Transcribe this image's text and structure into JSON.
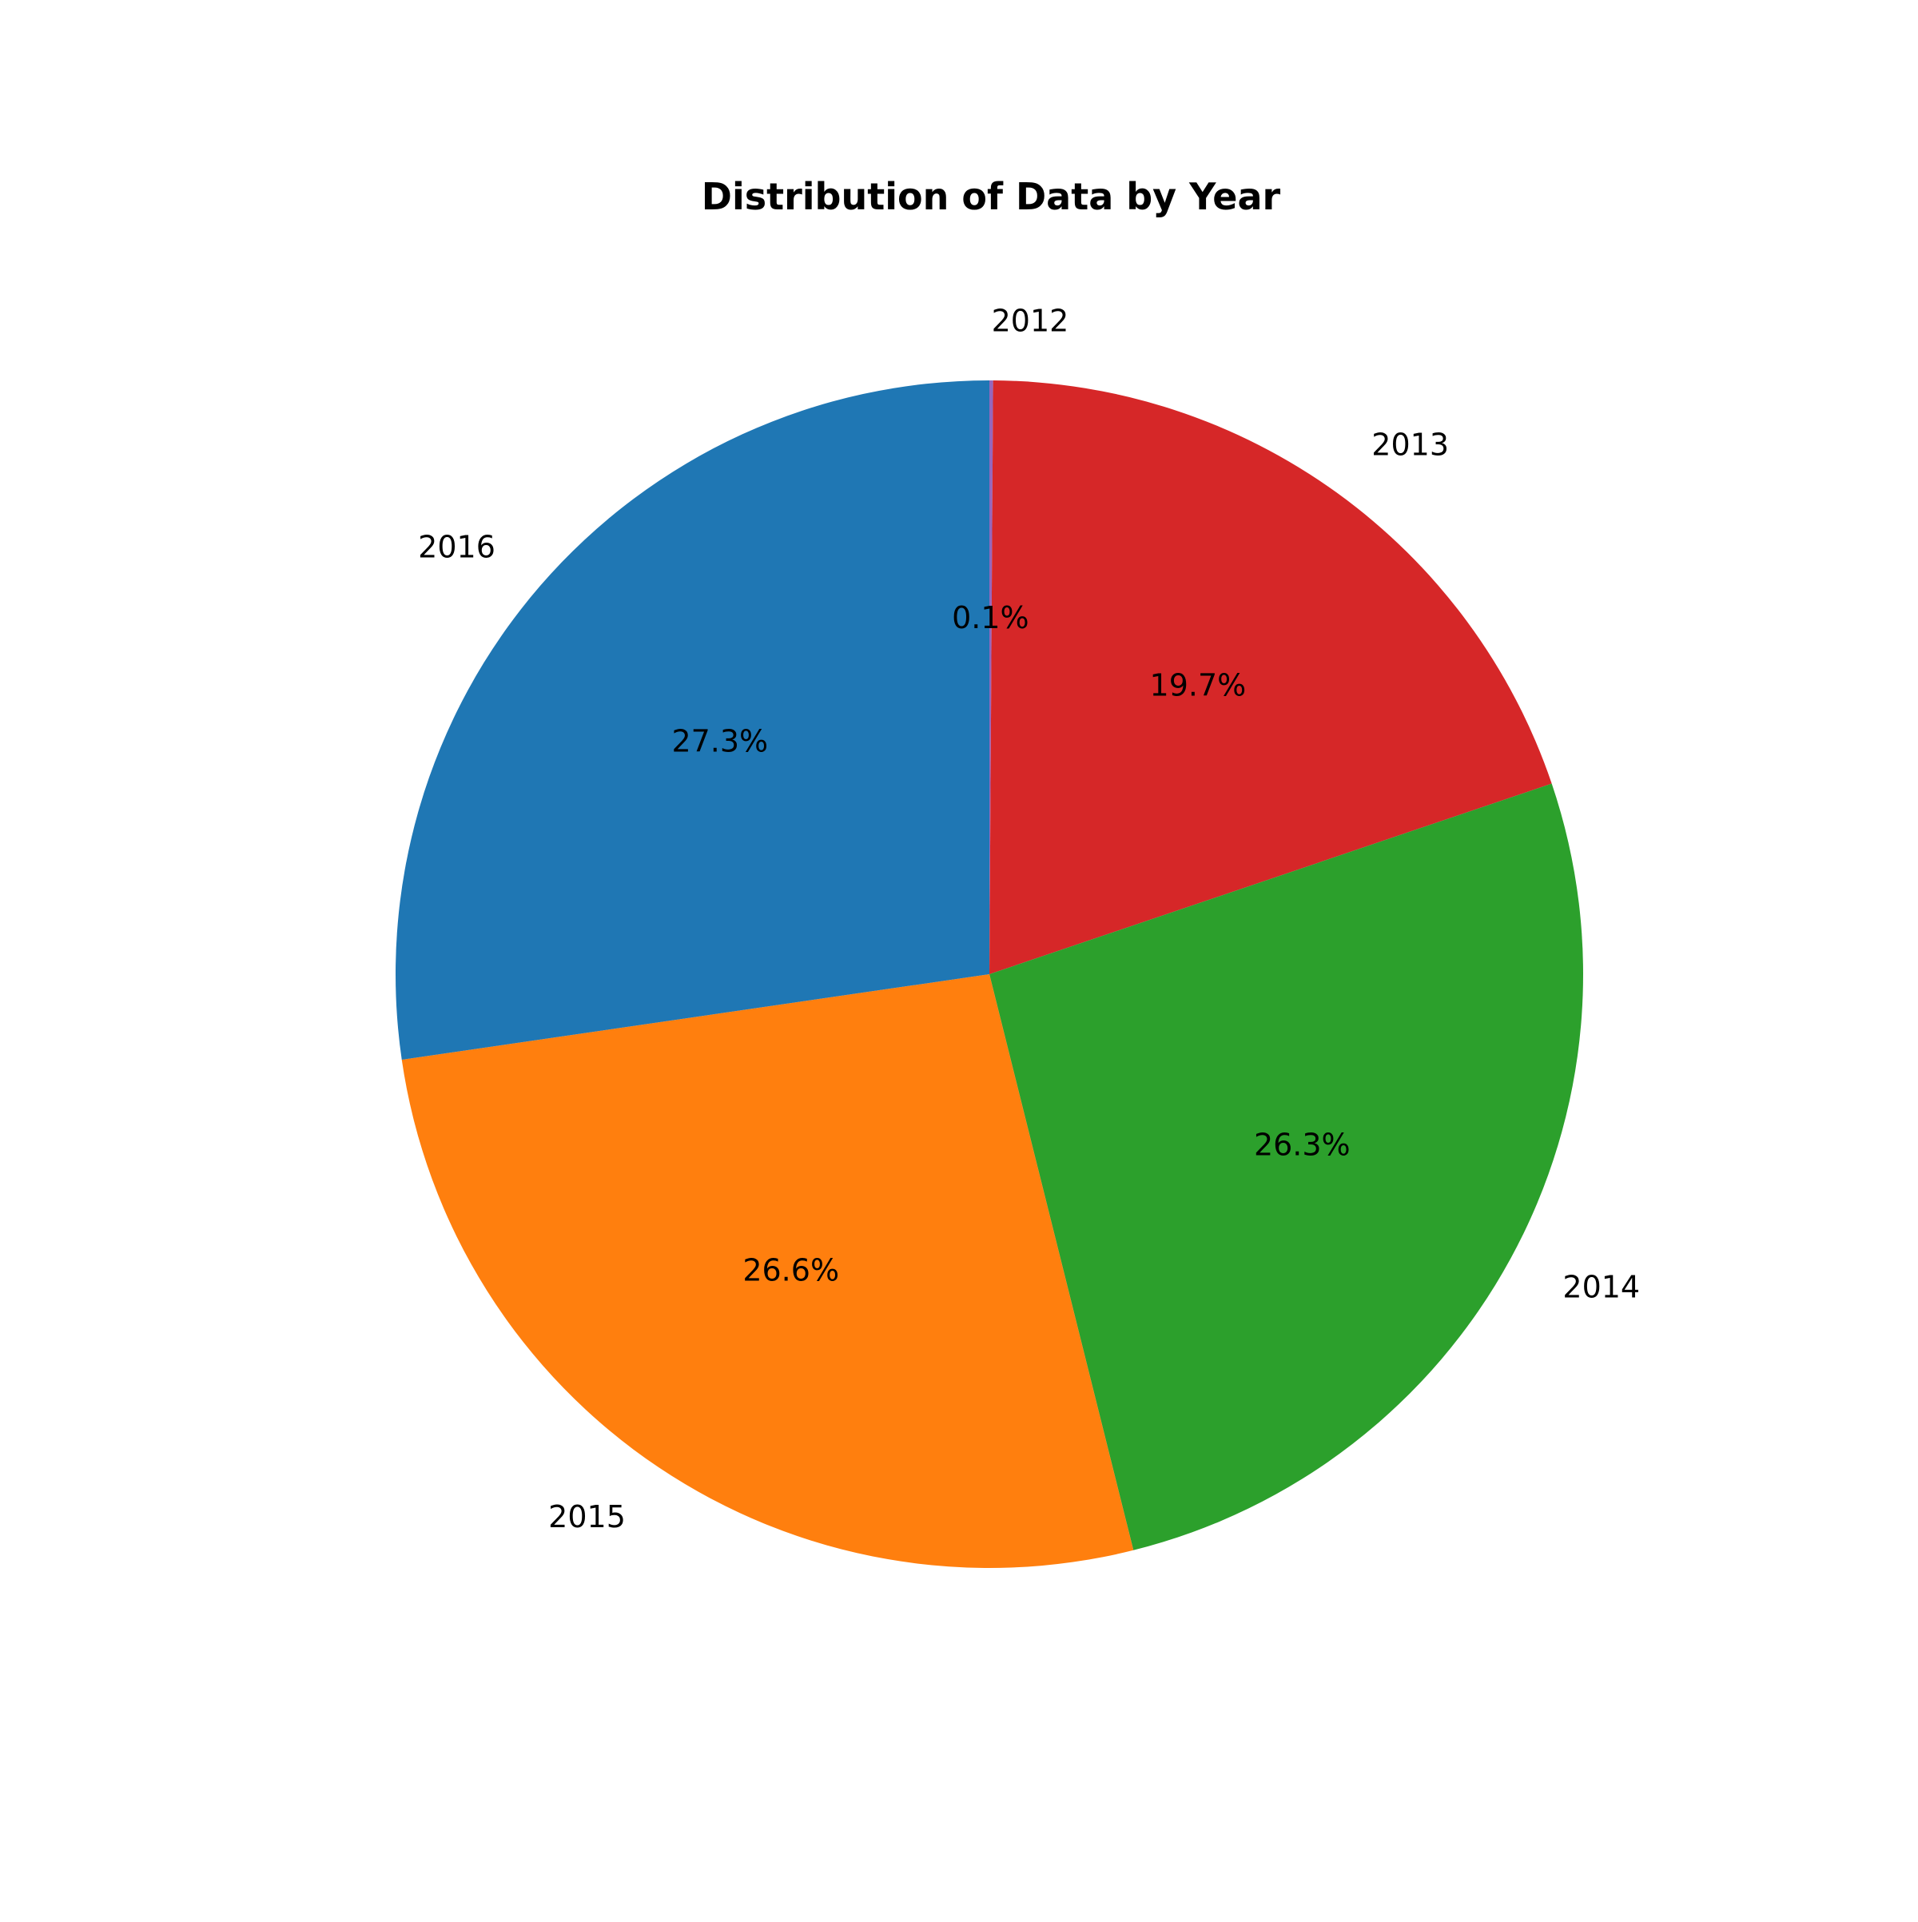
{
  "chart_data": {
    "type": "pie",
    "title": "Distribution of Data by Year",
    "categories": [
      "2012",
      "2013",
      "2014",
      "2015",
      "2016"
    ],
    "values": [
      0.1,
      19.7,
      26.3,
      26.6,
      27.3
    ],
    "percent_labels": [
      "0.1%",
      "19.7%",
      "26.3%",
      "26.6%",
      "27.3%"
    ],
    "colors": [
      "#9467bd",
      "#d62728",
      "#2ca02c",
      "#ff7f0e",
      "#1f77b4"
    ],
    "direction": "clockwise",
    "start": "top",
    "legend": "none"
  }
}
